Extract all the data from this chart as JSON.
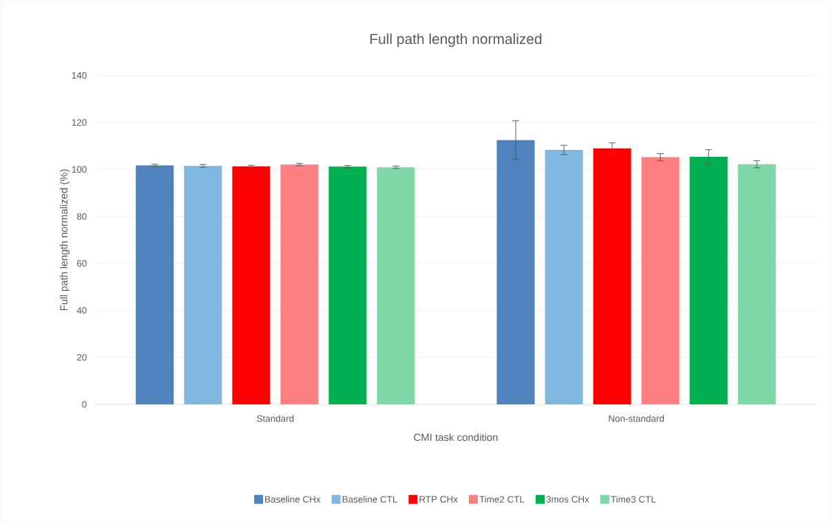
{
  "chart_data": {
    "type": "bar",
    "title": "Full path length normalized",
    "xlabel": "CMI task condition",
    "ylabel": "Full path length normalized (%)",
    "categories": [
      "Standard",
      "Non-standard"
    ],
    "series": [
      {
        "name": "Baseline CHx",
        "color": "#4f81bd",
        "values": [
          101.7,
          112.5
        ],
        "errors": [
          0.5,
          8.2
        ]
      },
      {
        "name": "Baseline CTL",
        "color": "#80b8e0",
        "values": [
          101.5,
          108.3
        ],
        "errors": [
          0.6,
          2.0
        ]
      },
      {
        "name": "RTP CHx",
        "color": "#ff0000",
        "values": [
          101.3,
          109.0
        ],
        "errors": [
          0.5,
          2.3
        ]
      },
      {
        "name": "Time2 CTL",
        "color": "#ff8080",
        "values": [
          102.1,
          105.2
        ],
        "errors": [
          0.5,
          1.5
        ]
      },
      {
        "name": "3mos CHx",
        "color": "#00b050",
        "values": [
          101.2,
          105.4
        ],
        "errors": [
          0.5,
          3.0
        ]
      },
      {
        "name": "Time3 CTL",
        "color": "#80d8a8",
        "values": [
          100.9,
          102.2
        ],
        "errors": [
          0.5,
          1.5
        ]
      }
    ],
    "ylim": [
      0,
      140
    ],
    "yticks": [
      0,
      20,
      40,
      60,
      80,
      100,
      120,
      140
    ],
    "grid": "y",
    "legend": "bottom"
  }
}
